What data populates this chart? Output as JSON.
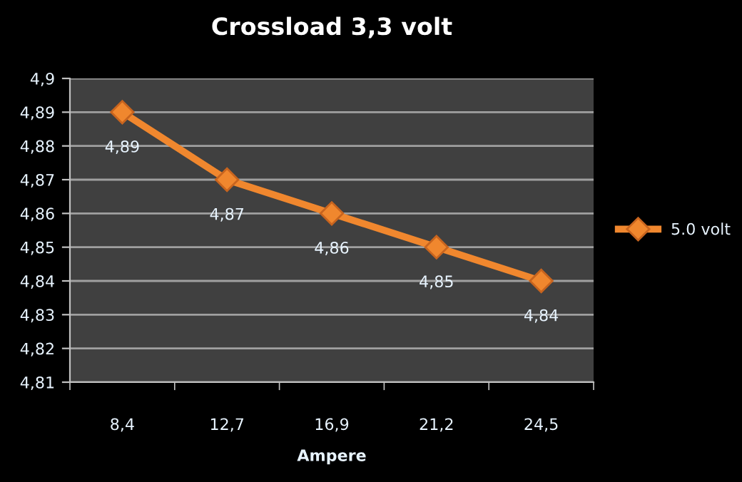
{
  "chart_data": {
    "type": "line",
    "title": "Crossload 3,3 volt",
    "xlabel": "Ampere",
    "categories": [
      "8,4",
      "12,7",
      "16,9",
      "21,2",
      "24,5"
    ],
    "series": [
      {
        "name": "5.0 volt",
        "color": "#f0872e",
        "values": [
          4.89,
          4.87,
          4.86,
          4.85,
          4.84
        ],
        "value_labels": [
          "4,89",
          "4,87",
          "4,86",
          "4,85",
          "4,84"
        ]
      }
    ],
    "ylim": [
      4.81,
      4.9
    ],
    "yticks": [
      {
        "value": 4.81,
        "label": "4,81"
      },
      {
        "value": 4.82,
        "label": "4,82"
      },
      {
        "value": 4.83,
        "label": "4,83"
      },
      {
        "value": 4.84,
        "label": "4,84"
      },
      {
        "value": 4.85,
        "label": "4,85"
      },
      {
        "value": 4.86,
        "label": "4,86"
      },
      {
        "value": 4.87,
        "label": "4,87"
      },
      {
        "value": 4.88,
        "label": "4,88"
      },
      {
        "value": 4.89,
        "label": "4,89"
      },
      {
        "value": 4.9,
        "label": "4,9"
      }
    ],
    "grid": "y",
    "legend": "right",
    "marker": "diamond",
    "line_style": "solid"
  }
}
